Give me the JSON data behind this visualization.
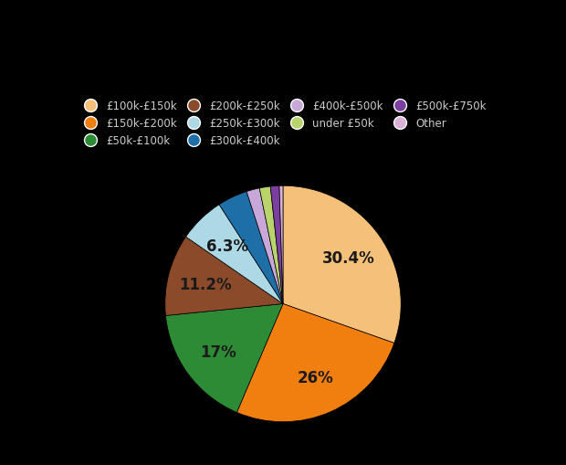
{
  "labels": [
    "£100k-£150k",
    "£150k-£200k",
    "£50k-£100k",
    "£200k-£250k",
    "£250k-£300k",
    "£300k-£400k",
    "£400k-£500k",
    "under £50k",
    "£500k-£750k",
    "Other"
  ],
  "values": [
    30.4,
    26.0,
    17.0,
    11.2,
    6.3,
    4.1,
    1.8,
    1.5,
    1.2,
    0.5
  ],
  "colors": [
    "#f5c07a",
    "#f07f10",
    "#2e8b35",
    "#8b4a2a",
    "#add8e6",
    "#1e6fa8",
    "#c8a8d8",
    "#b8d46a",
    "#7b3fa0",
    "#d8b0d8"
  ],
  "background_color": "#000000",
  "text_color": "#cccccc",
  "label_color": "#1a1a1a",
  "pct_display": [
    true,
    true,
    true,
    true,
    true,
    false,
    false,
    false,
    false,
    false
  ],
  "pct_strings": [
    "30.4%",
    "26%",
    "17%",
    "11.2%",
    "6.3%",
    "",
    "",
    "",
    "",
    ""
  ],
  "legend_labels": [
    "£100k-£150k",
    "£150k-£200k",
    "£50k-£100k",
    "£200k-£250k",
    "£250k-£300k",
    "£300k-£400k",
    "£400k-£500k",
    "under £50k",
    "£500k-£750k",
    "Other"
  ],
  "startangle": 90,
  "pctdistance": 0.68,
  "figsize": [
    6.2,
    5.1
  ],
  "dpi": 100
}
